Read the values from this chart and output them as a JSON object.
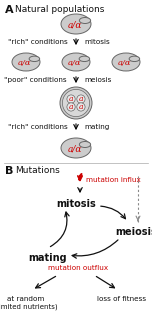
{
  "fig_width": 1.52,
  "fig_height": 3.32,
  "bg_color": "#ffffff",
  "section_A_label": "A",
  "section_A_title": "Natural populations",
  "section_B_label": "B",
  "section_B_title": "Mutations",
  "red_color": "#cc0000",
  "black_color": "#111111",
  "cell_fill": "#cccccc",
  "cell_edge": "#666666",
  "inner_cell_fill": "#e8e8e8",
  "label_aslash": "a/α",
  "label_a": "a",
  "rich_cond": "\"rich\" conditions",
  "poor_cond": "\"poor\" conditions",
  "mitosis_lbl": "mitosis",
  "meiosis_lbl": "meiosis",
  "mating_lbl": "mating",
  "mut_influx": "mutation influx",
  "mut_outflux": "mutation outflux",
  "at_random": "at random",
  "lim_nutr": "(limited nutrients)",
  "loss_fit": "loss of fitness"
}
